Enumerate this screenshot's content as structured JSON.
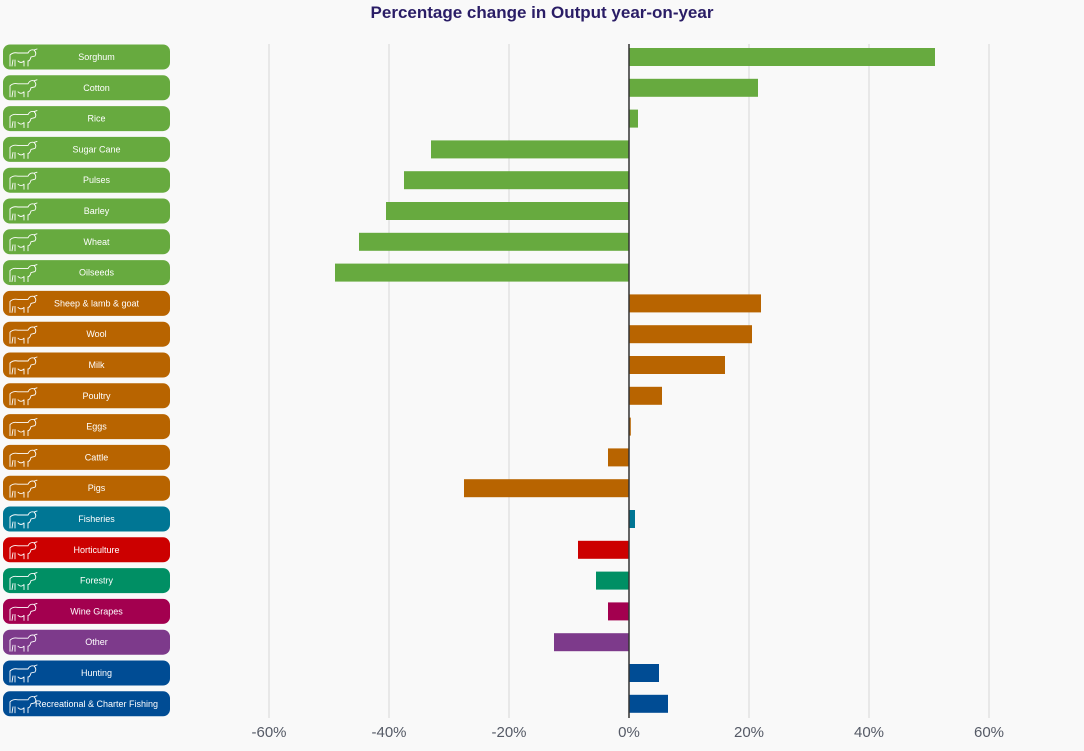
{
  "chart_data": {
    "type": "bar",
    "orientation": "horizontal",
    "title": "Percentage change in Output year-on-year",
    "xlabel": "",
    "ylabel": "",
    "xlim": [
      -60,
      60
    ],
    "xticks": [
      -60,
      -40,
      -20,
      0,
      20,
      40,
      60
    ],
    "tick_suffix": "%",
    "grid": true,
    "legend": "none",
    "icon": "cow-icon",
    "categories": [
      "Sorghum",
      "Cotton",
      "Rice",
      "Sugar Cane",
      "Pulses",
      "Barley",
      "Wheat",
      "Oilseeds",
      "Sheep & lamb & goat",
      "Wool",
      "Milk",
      "Poultry",
      "Eggs",
      "Cattle",
      "Pigs",
      "Fisheries",
      "Horticulture",
      "Forestry",
      "Wine Grapes",
      "Other",
      "Hunting",
      "Recreational & Charter Fishing"
    ],
    "values": [
      51,
      21.5,
      1.5,
      -33,
      -37.5,
      -40.5,
      -45,
      -49,
      22,
      20.5,
      16,
      5.5,
      0.3,
      -3.5,
      -27.5,
      1,
      -8.5,
      -5.5,
      -3.5,
      -12.5,
      5,
      6.5
    ],
    "groups": [
      "crops",
      "crops",
      "crops",
      "crops",
      "crops",
      "crops",
      "crops",
      "crops",
      "livestock",
      "livestock",
      "livestock",
      "livestock",
      "livestock",
      "livestock",
      "livestock",
      "fisheries",
      "horticulture",
      "forestry",
      "wine",
      "other",
      "hunting",
      "hunting"
    ],
    "colors": {
      "crops": "#67aa3f",
      "livestock": "#b86400",
      "fisheries": "#007694",
      "horticulture": "#cc0000",
      "forestry": "#008f64",
      "wine": "#a3004f",
      "other": "#7d3a8b",
      "hunting": "#004c94"
    }
  }
}
